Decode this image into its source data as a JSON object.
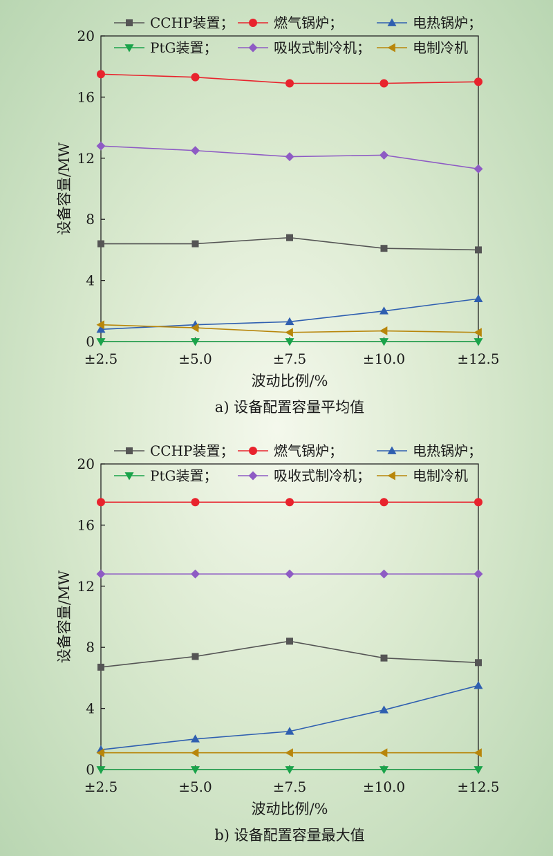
{
  "chart_data": [
    {
      "type": "line",
      "title": "a) 设备配置容量平均值",
      "xlabel": "波动比例/%",
      "ylabel": "设备容量/MW",
      "categories": [
        "±2.5",
        "±5.0",
        "±7.5",
        "±10.0",
        "±12.5"
      ],
      "ylim": [
        0,
        20
      ],
      "yticks": [
        "0",
        "4",
        "8",
        "12",
        "16",
        "20"
      ],
      "grid": false,
      "legend": "top",
      "series": [
        {
          "name": "CCHP装置；",
          "values": [
            6.4,
            6.4,
            6.8,
            6.1,
            6.0
          ],
          "color": "#555555",
          "marker": "square"
        },
        {
          "name": "燃气锅炉；",
          "values": [
            17.5,
            17.3,
            16.9,
            16.9,
            17.0
          ],
          "color": "#e8232d",
          "marker": "circle"
        },
        {
          "name": "电热锅炉；",
          "values": [
            0.8,
            1.1,
            1.3,
            2.0,
            2.8
          ],
          "color": "#2f5fb0",
          "marker": "triangle-up"
        },
        {
          "name": "PtG装置；",
          "values": [
            0.0,
            0.0,
            0.0,
            0.0,
            0.0
          ],
          "color": "#1aa34a",
          "marker": "triangle-down"
        },
        {
          "name": "吸收式制冷机；",
          "values": [
            12.8,
            12.5,
            12.1,
            12.2,
            11.3
          ],
          "color": "#8e5bc4",
          "marker": "diamond"
        },
        {
          "name": "电制冷机",
          "values": [
            1.1,
            0.9,
            0.6,
            0.7,
            0.6
          ],
          "color": "#b8860b",
          "marker": "triangle-left"
        }
      ]
    },
    {
      "type": "line",
      "title": "b) 设备配置容量最大值",
      "xlabel": "波动比例/%",
      "ylabel": "设备容量/MW",
      "categories": [
        "±2.5",
        "±5.0",
        "±7.5",
        "±10.0",
        "±12.5"
      ],
      "ylim": [
        0,
        20
      ],
      "yticks": [
        "0",
        "4",
        "8",
        "12",
        "16",
        "20"
      ],
      "grid": false,
      "legend": "top",
      "series": [
        {
          "name": "CCHP装置；",
          "values": [
            6.7,
            7.4,
            8.4,
            7.3,
            7.0
          ],
          "color": "#555555",
          "marker": "square"
        },
        {
          "name": "燃气锅炉；",
          "values": [
            17.5,
            17.5,
            17.5,
            17.5,
            17.5
          ],
          "color": "#e8232d",
          "marker": "circle"
        },
        {
          "name": "电热锅炉；",
          "values": [
            1.3,
            2.0,
            2.5,
            3.9,
            5.5
          ],
          "color": "#2f5fb0",
          "marker": "triangle-up"
        },
        {
          "name": "PtG装置；",
          "values": [
            0.0,
            0.0,
            0.0,
            0.0,
            0.0
          ],
          "color": "#1aa34a",
          "marker": "triangle-down"
        },
        {
          "name": "吸收式制冷机；",
          "values": [
            12.8,
            12.8,
            12.8,
            12.8,
            12.8
          ],
          "color": "#8e5bc4",
          "marker": "diamond"
        },
        {
          "name": "电制冷机",
          "values": [
            1.1,
            1.1,
            1.1,
            1.1,
            1.1
          ],
          "color": "#b8860b",
          "marker": "triangle-left"
        }
      ]
    }
  ]
}
